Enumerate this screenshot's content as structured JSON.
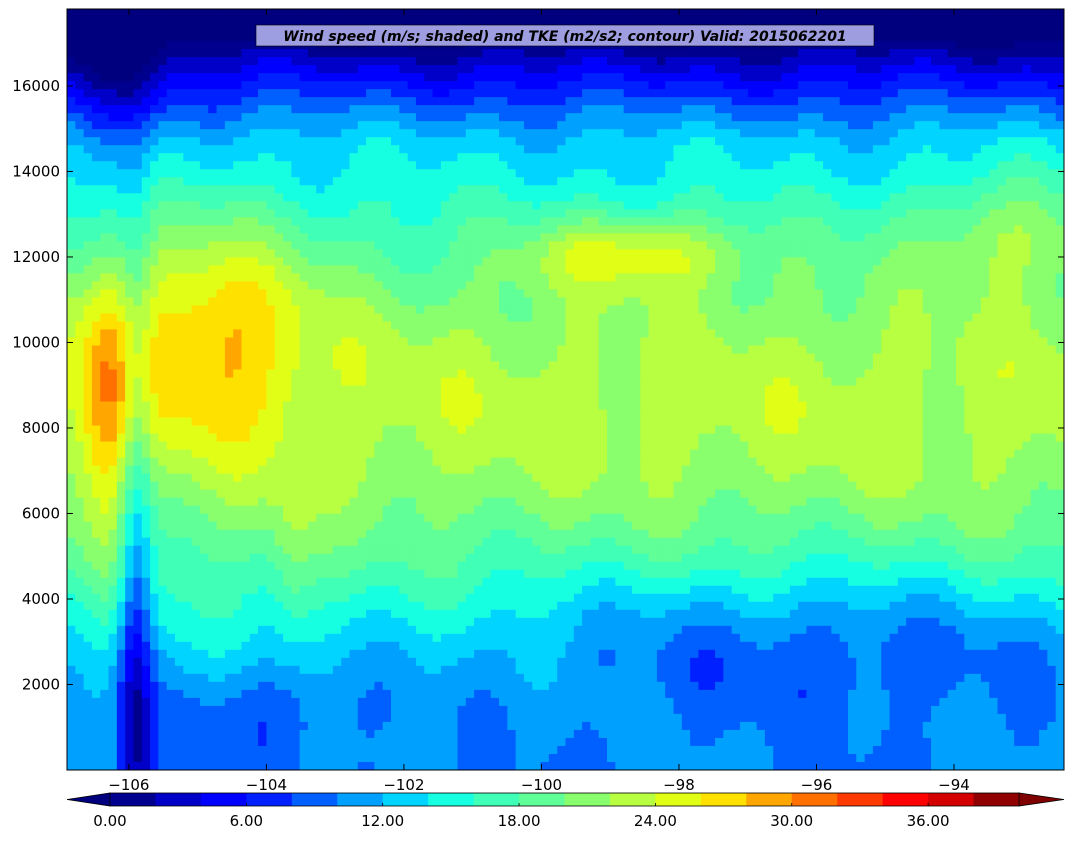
{
  "chart_data": {
    "type": "heatmap",
    "title": "Wind speed (m/s; shaded) and TKE (m2/s2; contour) Valid: 2015062201",
    "xlabel": "",
    "ylabel": "",
    "xlim": [
      -106.9,
      -92.4
    ],
    "ylim": [
      0,
      17800
    ],
    "x_ticks": [
      -106,
      -104,
      -102,
      -100,
      -98,
      -96,
      -94
    ],
    "x_tick_labels": [
      "−106",
      "−104",
      "−102",
      "−100",
      "−98",
      "−96",
      "−94"
    ],
    "y_ticks": [
      2000,
      4000,
      6000,
      8000,
      10000,
      12000,
      14000,
      16000
    ],
    "y_tick_labels": [
      "2000",
      "4000",
      "6000",
      "8000",
      "10000",
      "12000",
      "14000",
      "16000"
    ],
    "colorbar": {
      "orientation": "horizontal",
      "extend": "both",
      "levels": [
        0,
        2,
        4,
        6,
        8,
        10,
        12,
        14,
        16,
        18,
        20,
        22,
        24,
        26,
        28,
        30,
        32,
        34,
        36,
        38,
        40
      ],
      "colors": [
        "#00008f",
        "#0000c8",
        "#0000ff",
        "#0020ff",
        "#0060ff",
        "#00a0ff",
        "#00d4ff",
        "#16ffe1",
        "#40ffb7",
        "#60ff97",
        "#8aff6d",
        "#b7ff40",
        "#e1ff16",
        "#ffe100",
        "#ffa700",
        "#ff7000",
        "#ff3a00",
        "#ff0000",
        "#d40000",
        "#900000"
      ],
      "under_color": "#00007f",
      "over_color": "#7f0000",
      "tick_values": [
        0,
        6,
        12,
        18,
        24,
        30,
        36
      ],
      "tick_labels": [
        "0.00",
        "6.00",
        "12.00",
        "18.00",
        "24.00",
        "30.00",
        "36.00"
      ]
    },
    "grid": false,
    "legend": "none",
    "field_description_units": "m/s",
    "field_grid": {
      "x": [
        -106.9,
        -106.5,
        -106.0,
        -105.5,
        -105.0,
        -104.5,
        -104.0,
        -103.5,
        -103.0,
        -102.5,
        -102.0,
        -101.5,
        -101.0,
        -100.5,
        -100.0,
        -99.5,
        -99.0,
        -98.5,
        -98.0,
        -97.5,
        -97.0,
        -96.5,
        -96.0,
        -95.5,
        -95.0,
        -94.5,
        -94.0,
        -93.5,
        -93.0,
        -92.4
      ],
      "y": [
        0,
        1000,
        2000,
        3000,
        4000,
        5000,
        6000,
        7000,
        8000,
        9000,
        10000,
        11000,
        12000,
        13000,
        14000,
        15000,
        16000,
        17000,
        17800
      ]
    }
  }
}
